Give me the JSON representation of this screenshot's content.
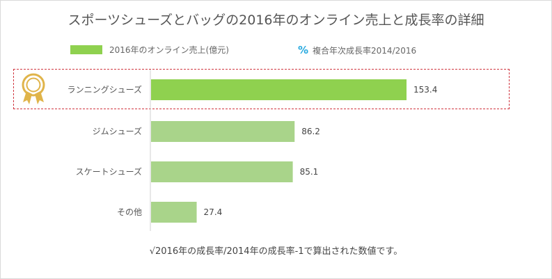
{
  "title": "スポーツシューズとバッグの2016年のオンライン売上と成長率の詳細",
  "legend": {
    "series_label": "2016年のオンライン売上(億元)",
    "pct_symbol": "%",
    "pct_label": "複合年次成長率2014/2016"
  },
  "note": "√2016年の成長率/2014年の成長率-1で算出された数値です。",
  "icons": {
    "medal": "award-medal-icon"
  },
  "colors": {
    "highlight_bar": "#8fd14f",
    "normal_bar": "#a9d48a",
    "highlight_border": "#d0353f",
    "pct_symbol": "#27a9df",
    "medal": "#e0b44a"
  },
  "chart_data": {
    "type": "bar",
    "orientation": "horizontal",
    "categories": [
      "ランニングシューズ",
      "ジムシューズ",
      "スケートシューズ",
      "その他"
    ],
    "values": [
      153.4,
      86.2,
      85.1,
      27.4
    ],
    "value_labels": [
      "153.4",
      "86.2",
      "85.1",
      "27.4"
    ],
    "highlighted": "ランニングシューズ",
    "xlim": [
      0,
      160
    ],
    "grid": false,
    "legend_position": "top"
  }
}
